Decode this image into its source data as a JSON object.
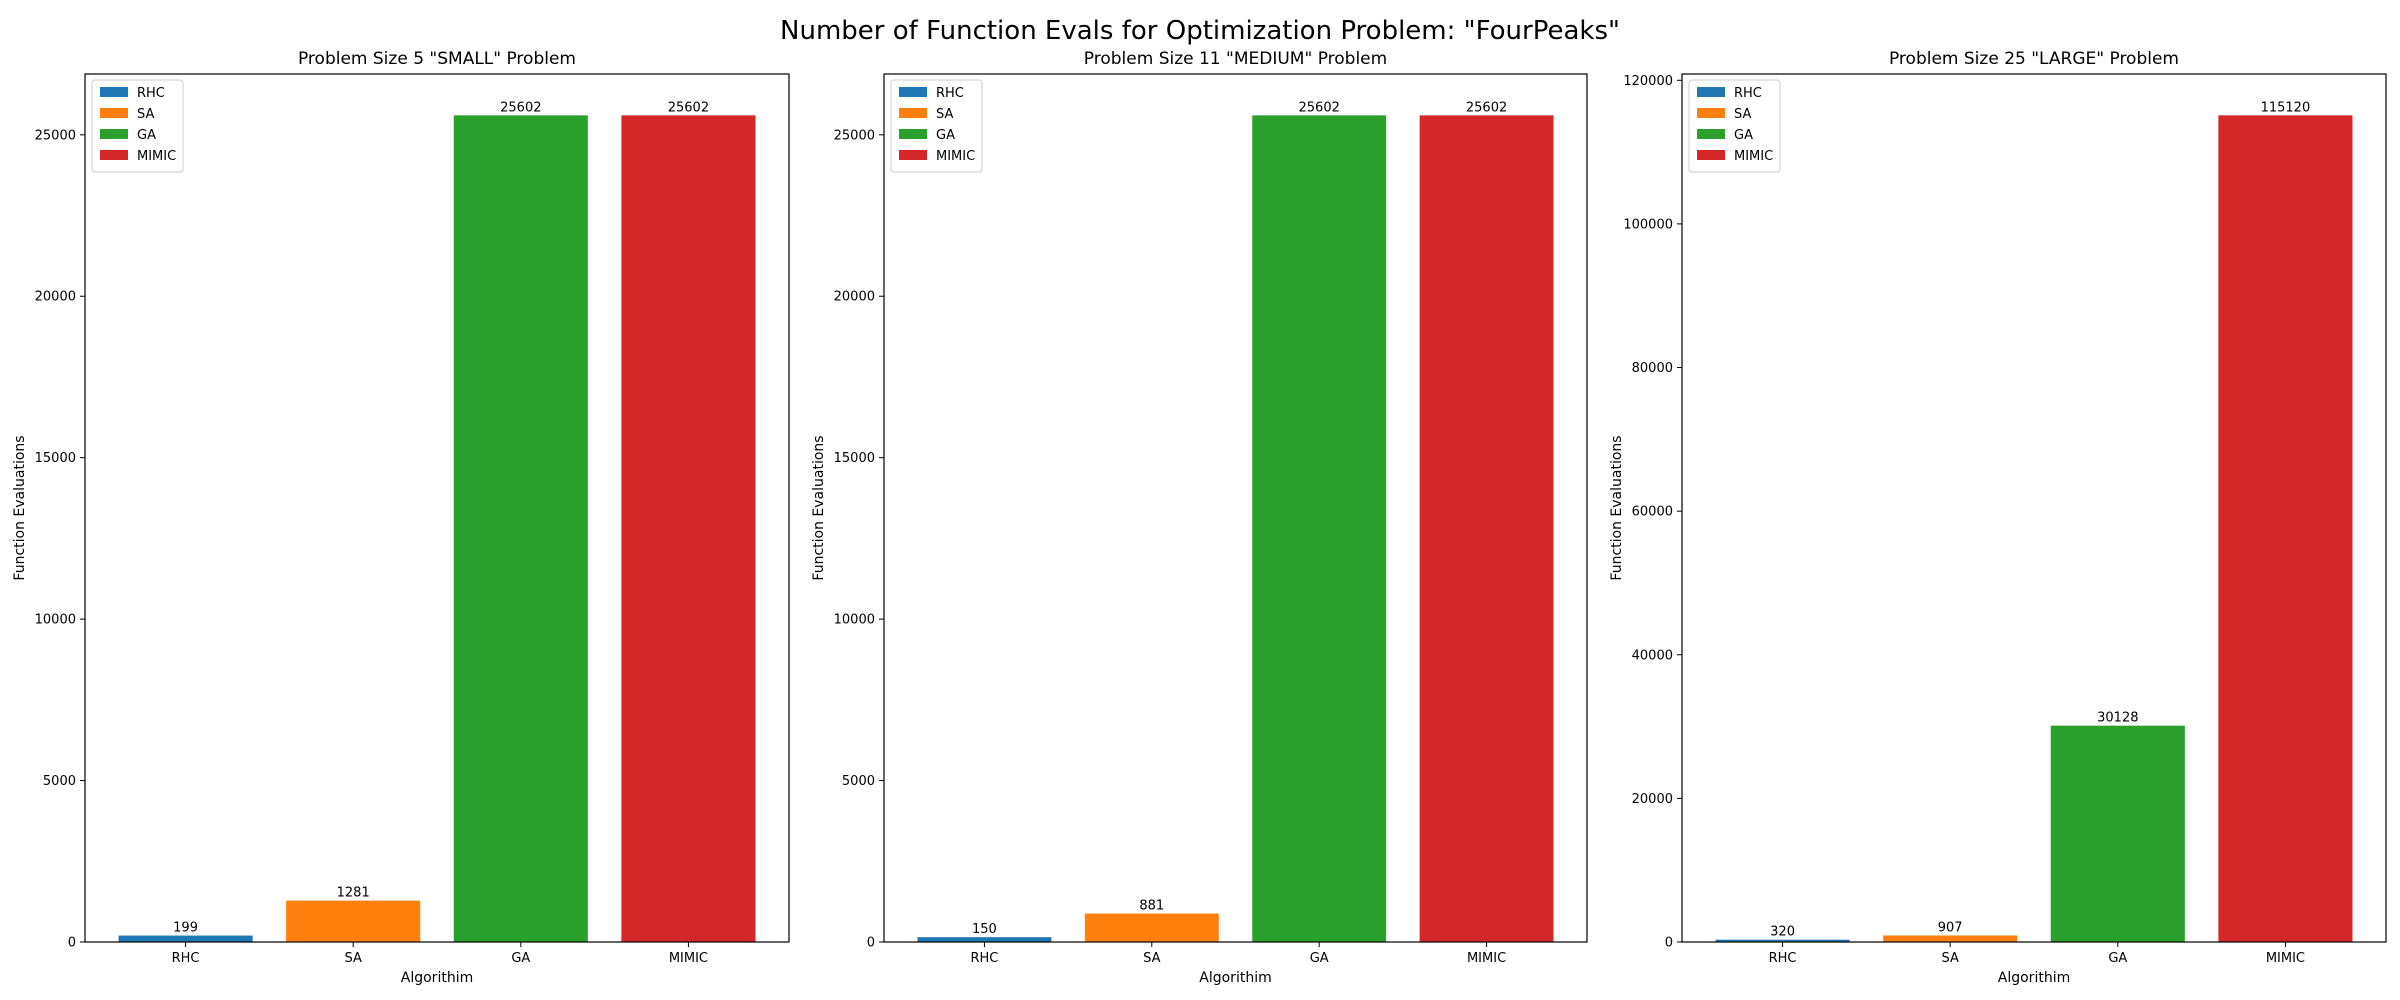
{
  "figure_title": "Number of Function Evals for Optimization Problem: \"FourPeaks\"",
  "colors": {
    "RHC": "#1f77b4",
    "SA": "#ff7f0e",
    "GA": "#2ca02c",
    "MIMIC": "#d62728"
  },
  "chart_data": [
    {
      "type": "bar",
      "title": "Problem Size 5 \"SMALL\" Problem",
      "xlabel": "Algorithim",
      "ylabel": "Function Evaluations",
      "categories": [
        "RHC",
        "SA",
        "GA",
        "MIMIC"
      ],
      "values": [
        199,
        1281,
        25602,
        25602
      ],
      "data_labels": [
        "199",
        "1281",
        "25602",
        "25602"
      ],
      "ylim": [
        0,
        26883
      ],
      "yticks": [
        0,
        5000,
        10000,
        15000,
        20000,
        25000
      ],
      "legend": [
        "RHC",
        "SA",
        "GA",
        "MIMIC"
      ],
      "legend_position": "top-left",
      "grid": false
    },
    {
      "type": "bar",
      "title": "Problem Size 11 \"MEDIUM\" Problem",
      "xlabel": "Algorithim",
      "ylabel": "Function Evaluations",
      "categories": [
        "RHC",
        "SA",
        "GA",
        "MIMIC"
      ],
      "values": [
        150,
        881,
        25602,
        25602
      ],
      "data_labels": [
        "150",
        "881",
        "25602",
        "25602"
      ],
      "ylim": [
        0,
        26883
      ],
      "yticks": [
        0,
        5000,
        10000,
        15000,
        20000,
        25000
      ],
      "legend": [
        "RHC",
        "SA",
        "GA",
        "MIMIC"
      ],
      "legend_position": "top-left",
      "grid": false
    },
    {
      "type": "bar",
      "title": "Problem Size 25 \"LARGE\" Problem",
      "xlabel": "Algorithim",
      "ylabel": "Function Evaluations",
      "categories": [
        "RHC",
        "SA",
        "GA",
        "MIMIC"
      ],
      "values": [
        320,
        907,
        30128,
        115120
      ],
      "data_labels": [
        "320",
        "907",
        "30128",
        "115120"
      ],
      "ylim": [
        0,
        120876
      ],
      "yticks": [
        0,
        20000,
        40000,
        60000,
        80000,
        100000,
        120000
      ],
      "legend": [
        "RHC",
        "SA",
        "GA",
        "MIMIC"
      ],
      "legend_position": "top-left",
      "grid": false
    }
  ]
}
